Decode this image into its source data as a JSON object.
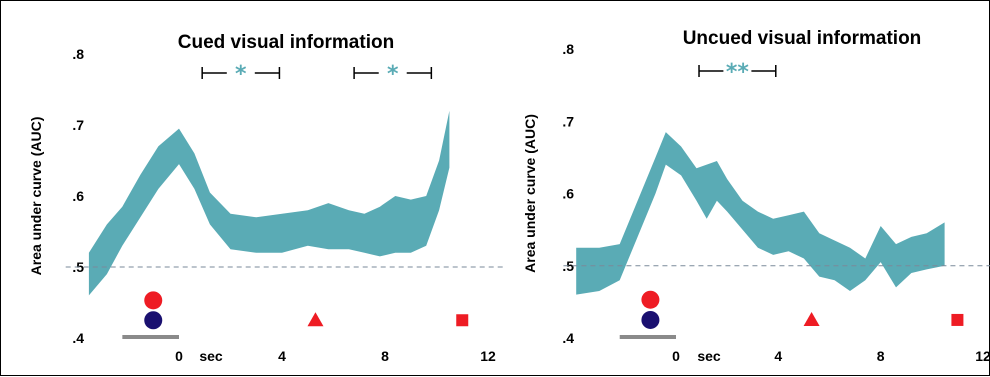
{
  "chart_data": [
    {
      "type": "area",
      "title": "Cued visual information",
      "ylabel": "Area under curve (AUC)",
      "x_unit_label": "sec",
      "xlim": [
        -4.7,
        12
      ],
      "ylim": [
        0.4,
        0.8
      ],
      "x_ticks": [
        0,
        4,
        8,
        12
      ],
      "x_tick_labels": [
        "0",
        "4",
        "8",
        "12"
      ],
      "y_ticks": [
        0.4,
        0.5,
        0.6,
        0.7,
        0.8
      ],
      "y_tick_labels": [
        ".4",
        ".5",
        ".6",
        ".7",
        ".8"
      ],
      "chance_level": 0.5,
      "band_color": "#5aabb5",
      "x": [
        -3.5,
        -2.8,
        -2.2,
        -1.5,
        -0.8,
        0,
        0.6,
        1.2,
        2.0,
        3.0,
        4.0,
        5.0,
        5.8,
        6.6,
        7.2,
        7.8,
        8.4,
        9.0,
        9.6,
        10.1,
        10.5
      ],
      "lower": [
        0.46,
        0.49,
        0.53,
        0.57,
        0.61,
        0.645,
        0.61,
        0.56,
        0.525,
        0.52,
        0.52,
        0.53,
        0.525,
        0.525,
        0.52,
        0.515,
        0.52,
        0.52,
        0.53,
        0.58,
        0.64
      ],
      "upper": [
        0.52,
        0.56,
        0.585,
        0.63,
        0.67,
        0.695,
        0.66,
        0.605,
        0.575,
        0.57,
        0.575,
        0.58,
        0.59,
        0.58,
        0.575,
        0.585,
        0.6,
        0.595,
        0.6,
        0.65,
        0.72
      ],
      "significance": [
        {
          "start": 0.9,
          "end": 3.9,
          "label": "*"
        },
        {
          "start": 6.8,
          "end": 9.8,
          "label": "*"
        }
      ],
      "stimulus_period": [
        -2.2,
        0
      ],
      "markers": [
        {
          "shape": "circle",
          "x": -1.0,
          "y": 0.453,
          "color": "#ee1c24"
        },
        {
          "shape": "circle",
          "x": -1.0,
          "y": 0.425,
          "color": "#1a1070"
        },
        {
          "shape": "triangle",
          "x": 5.3,
          "y": 0.425,
          "color": "#ee1c24"
        },
        {
          "shape": "square",
          "x": 11.0,
          "y": 0.425,
          "color": "#ee1c24"
        }
      ]
    },
    {
      "type": "area",
      "title": "Uncued visual information",
      "ylabel": "Area under curve (AUC)",
      "x_unit_label": "sec",
      "xlim": [
        -4.7,
        12
      ],
      "ylim": [
        0.4,
        0.8
      ],
      "x_ticks": [
        0,
        4,
        8,
        12
      ],
      "x_tick_labels": [
        "0",
        "4",
        "8",
        "12"
      ],
      "y_ticks": [
        0.4,
        0.5,
        0.6,
        0.7,
        0.8
      ],
      "y_tick_labels": [
        ".4",
        ".5",
        ".6",
        ".7",
        ".8"
      ],
      "chance_level": 0.5,
      "band_color": "#5aabb5",
      "x": [
        -3.9,
        -3.0,
        -2.2,
        -1.5,
        -0.8,
        -0.4,
        0.2,
        0.8,
        1.2,
        1.6,
        2.0,
        2.6,
        3.2,
        3.8,
        4.4,
        5.0,
        5.6,
        6.2,
        6.8,
        7.4,
        8.0,
        8.6,
        9.2,
        9.8,
        10.5
      ],
      "lower": [
        0.46,
        0.465,
        0.48,
        0.54,
        0.6,
        0.64,
        0.625,
        0.59,
        0.565,
        0.59,
        0.575,
        0.55,
        0.525,
        0.515,
        0.52,
        0.51,
        0.485,
        0.48,
        0.465,
        0.48,
        0.505,
        0.47,
        0.49,
        0.495,
        0.5
      ],
      "upper": [
        0.525,
        0.525,
        0.53,
        0.59,
        0.65,
        0.685,
        0.665,
        0.635,
        0.64,
        0.645,
        0.62,
        0.59,
        0.575,
        0.565,
        0.57,
        0.575,
        0.545,
        0.535,
        0.525,
        0.51,
        0.555,
        0.53,
        0.54,
        0.545,
        0.56
      ],
      "significance": [
        {
          "start": 0.9,
          "end": 3.9,
          "label": "**"
        }
      ],
      "stimulus_period": [
        -2.2,
        0
      ],
      "markers": [
        {
          "shape": "circle",
          "x": -1.0,
          "y": 0.453,
          "color": "#ee1c24"
        },
        {
          "shape": "circle",
          "x": -1.0,
          "y": 0.425,
          "color": "#1a1070"
        },
        {
          "shape": "triangle",
          "x": 5.3,
          "y": 0.425,
          "color": "#ee1c24"
        },
        {
          "shape": "square",
          "x": 11.0,
          "y": 0.425,
          "color": "#ee1c24"
        }
      ]
    }
  ]
}
